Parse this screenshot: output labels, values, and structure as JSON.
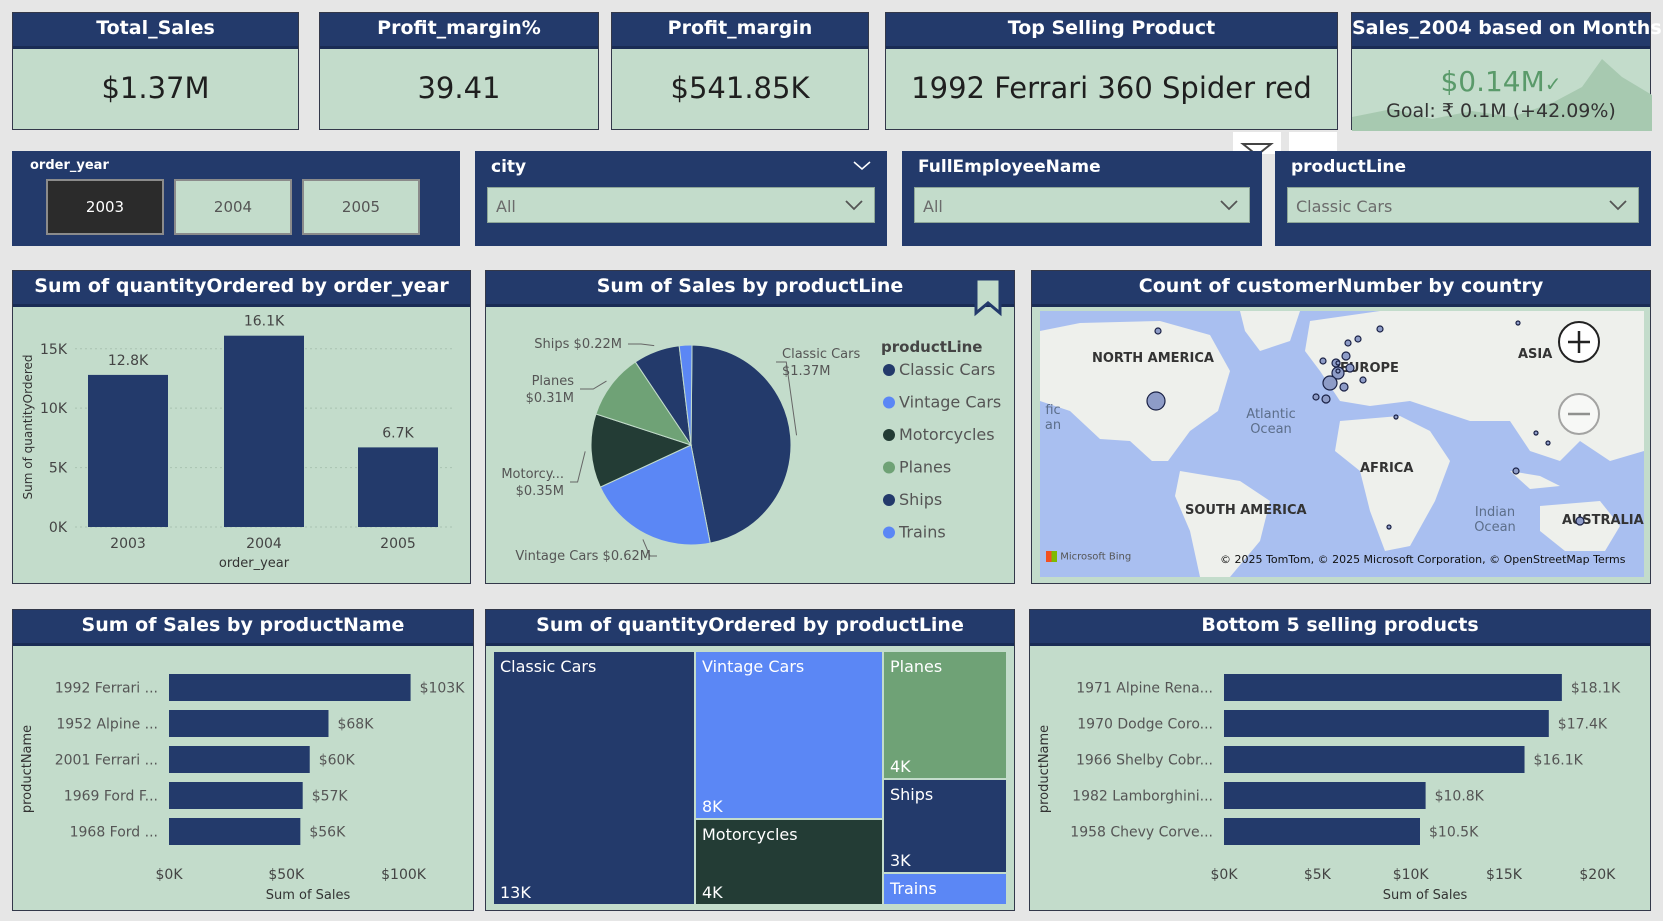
{
  "kpis": [
    {
      "title": "Total_Sales",
      "value": "$1.37M"
    },
    {
      "title": "Profit_margin%",
      "value": "39.41"
    },
    {
      "title": "Profit_margin",
      "value": "$541.85K"
    },
    {
      "title": "Top Selling Product",
      "value": "1992 Ferrari 360 Spider red"
    }
  ],
  "goal_card": {
    "title": "Sales_2004 based on Months",
    "value": "$0.14M",
    "goal": "Goal: ₹ 0.1M (+42.09%)"
  },
  "slicers": {
    "order_year": {
      "title": "order_year",
      "options": [
        "2003",
        "2004",
        "2005"
      ],
      "selected": "2003"
    },
    "city": {
      "title": "city",
      "value": "All"
    },
    "employee": {
      "title": "FullEmployeeName",
      "value": "All"
    },
    "productline": {
      "title": "productLine",
      "value": "Classic Cars"
    }
  },
  "colors": {
    "navy": "#233a6b",
    "blue": "#5b87f5",
    "dark_green": "#233c35",
    "green": "#6fa276",
    "panel": "#c3dccb"
  },
  "map": {
    "title": "Count of customerNumber by country",
    "labels": {
      "north_america": "NORTH AMERICA",
      "europe": "EUROPE",
      "asia": "ASIA",
      "africa": "AFRICA",
      "south_america": "SOUTH AMERICA",
      "australia": "AUSTRALIA",
      "atlantic": "Atlantic Ocean",
      "indian": "Indian Ocean",
      "pacific_partial": "fic an"
    },
    "attribution": "© 2025 TomTom, © 2025 Microsoft Corporation, © OpenStreetMap  Terms",
    "bing": "Microsoft Bing"
  },
  "chart_data": [
    {
      "id": "qty_by_year",
      "type": "bar",
      "title": "Sum of quantityOrdered by order_year",
      "categories": [
        "2003",
        "2004",
        "2005"
      ],
      "values": [
        12800,
        16100,
        6700
      ],
      "data_labels": [
        "12.8K",
        "16.1K",
        "6.7K"
      ],
      "xlabel": "order_year",
      "ylabel": "Sum of quantityOrdered",
      "ylim": [
        0,
        17000
      ],
      "yticks": [
        0,
        5000,
        10000,
        15000
      ],
      "ytick_labels": [
        "0K",
        "5K",
        "10K",
        "15K"
      ],
      "grid": true
    },
    {
      "id": "sales_by_productline",
      "type": "pie",
      "title": "Sum of Sales by productLine",
      "legend_title": "productLine",
      "legend": [
        "Classic Cars",
        "Vintage Cars",
        "Motorcycles",
        "Planes",
        "Ships",
        "Trains"
      ],
      "slices": [
        {
          "name": "Classic Cars",
          "value": 1.37,
          "label": "Classic Cars",
          "label2": "$1.37M"
        },
        {
          "name": "Vintage Cars",
          "value": 0.62,
          "label": "Vintage Cars $0.62M",
          "label2": ""
        },
        {
          "name": "Motorcycles",
          "value": 0.35,
          "label": "Motorcy...",
          "label2": "$0.35M"
        },
        {
          "name": "Planes",
          "value": 0.31,
          "label": "Planes",
          "label2": "$0.31M"
        },
        {
          "name": "Ships",
          "value": 0.22,
          "label": "Ships $0.22M",
          "label2": ""
        },
        {
          "name": "Trains",
          "value": 0.06,
          "label": "",
          "label2": ""
        }
      ],
      "legend_placement": "right"
    },
    {
      "id": "sales_by_productname",
      "type": "bar",
      "orientation": "horizontal",
      "title": "Sum of Sales by productName",
      "categories": [
        "1992 Ferrari ...",
        "1952 Alpine ...",
        "2001 Ferrari ...",
        "1969 Ford F...",
        "1968 Ford ..."
      ],
      "values": [
        103,
        68,
        60,
        57,
        56
      ],
      "data_labels": [
        "$103K",
        "$68K",
        "$60K",
        "$57K",
        "$56K"
      ],
      "xlabel": "Sum of Sales",
      "ylabel": "productName",
      "xlim": [
        0,
        110
      ],
      "xticks": [
        0,
        50,
        100
      ],
      "xtick_labels": [
        "$0K",
        "$50K",
        "$100K"
      ]
    },
    {
      "id": "qty_by_productline_treemap",
      "type": "treemap",
      "title": "Sum of quantityOrdered by productLine",
      "items": [
        {
          "name": "Classic Cars",
          "value_label": "13K"
        },
        {
          "name": "Vintage Cars",
          "value_label": "8K"
        },
        {
          "name": "Motorcycles",
          "value_label": "4K"
        },
        {
          "name": "Planes",
          "value_label": "4K"
        },
        {
          "name": "Ships",
          "value_label": "3K"
        },
        {
          "name": "Trains",
          "value_label": ""
        }
      ]
    },
    {
      "id": "bottom5",
      "type": "bar",
      "orientation": "horizontal",
      "title": "Bottom 5 selling products",
      "categories": [
        "1971 Alpine Rena...",
        "1970 Dodge Coro...",
        "1966 Shelby Cobr...",
        "1982 Lamborghini...",
        "1958 Chevy Corve..."
      ],
      "values": [
        18.1,
        17.4,
        16.1,
        10.8,
        10.5
      ],
      "data_labels": [
        "$18.1K",
        "$17.4K",
        "$16.1K",
        "$10.8K",
        "$10.5K"
      ],
      "xlabel": "Sum of Sales",
      "ylabel": "productName",
      "xlim": [
        0,
        21
      ],
      "xticks": [
        0,
        5,
        10,
        15,
        20
      ],
      "xtick_labels": [
        "$0K",
        "$5K",
        "$10K",
        "$15K",
        "$20K"
      ]
    }
  ]
}
